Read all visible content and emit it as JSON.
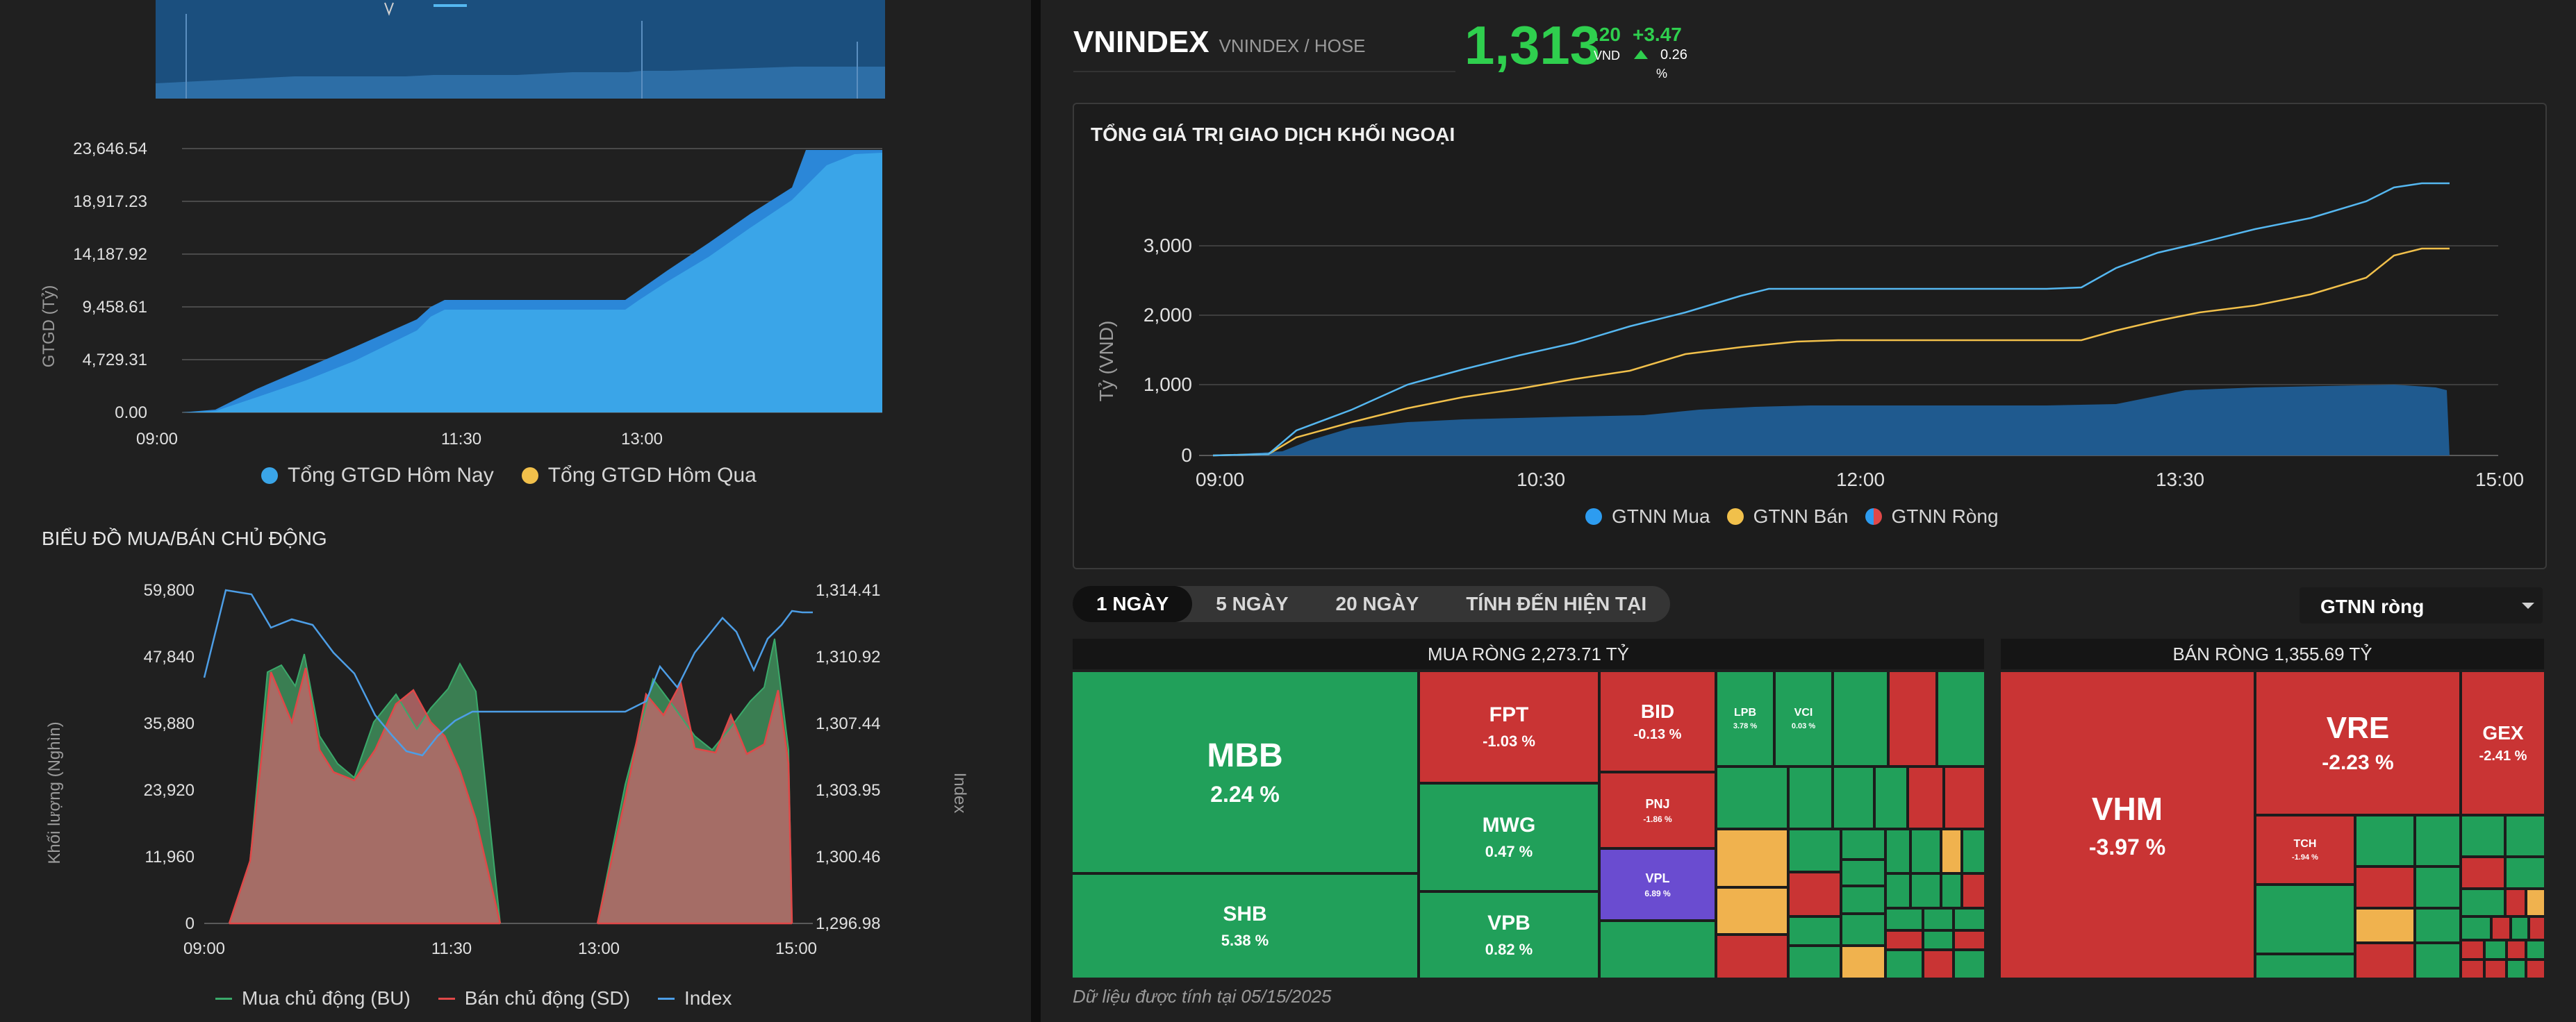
{
  "left": {
    "gtgd_chart": {
      "ylabel": "GTGD (Tỷ)",
      "y_ticks": [
        "23,646.54",
        "18,917.23",
        "14,187.92",
        "9,458.61",
        "4,729.31",
        "0.00"
      ],
      "x_ticks": [
        "09:00",
        "11:30",
        "13:00"
      ],
      "legend_today": "Tổng GTGD Hôm Nay",
      "legend_yesterday": "Tổng GTGD Hôm Qua",
      "color_today": "#3aa5e8",
      "color_yesterday": "#f1c04b"
    },
    "active_title": "BIỂU ĐỒ MUA/BÁN CHỦ ĐỘNG",
    "active_chart": {
      "ylabel_left": "Khối lượng (Nghìn)",
      "ylabel_right": "Index",
      "y_left_ticks": [
        "59,800",
        "47,840",
        "35,880",
        "23,920",
        "11,960",
        "0"
      ],
      "y_right_ticks": [
        "1,314.41",
        "1,310.92",
        "1,307.44",
        "1,303.95",
        "1,300.46",
        "1,296.98"
      ],
      "x_ticks": [
        "09:00",
        "11:30",
        "13:00",
        "15:00"
      ],
      "legend_bu": "Mua chủ động (BU)",
      "legend_sd": "Bán chủ động (SD)",
      "legend_index": "Index"
    }
  },
  "header": {
    "symbol": "VNINDEX",
    "exchange": "VNINDEX / HOSE",
    "price_main": "1,313",
    "price_decimal": ".20",
    "currency": "VND",
    "change": "+3.47",
    "change_pct": "0.26",
    "pct_sign": "%"
  },
  "foreign_chart": {
    "title": "TỔNG GIÁ TRỊ GIAO DỊCH KHỐI NGOẠI",
    "ylabel": "Tỷ (VND)",
    "y_ticks": [
      "3,000",
      "2,000",
      "1,000",
      "0"
    ],
    "x_ticks": [
      "09:00",
      "10:30",
      "12:00",
      "13:30",
      "15:00"
    ],
    "legend_buy": "GTNN Mua",
    "legend_sell": "GTNN Bán",
    "legend_net": "GTNN Ròng",
    "color_buy": "#55b7f0",
    "color_sell": "#f1c04b",
    "color_net": "#1f5a8f"
  },
  "tabs": [
    "1 NGÀY",
    "5 NGÀY",
    "20 NGÀY",
    "TÍNH ĐẾN HIỆN TẠI"
  ],
  "dropdown_value": "GTNN ròng",
  "treemap": {
    "buy_title": "MUA RÒNG 2,273.71 TỶ",
    "sell_title": "BÁN RÒNG 1,355.69 TỶ",
    "buy_cells": [
      {
        "name": "MBB",
        "pct": "2.24 %"
      },
      {
        "name": "SHB",
        "pct": "5.38 %"
      },
      {
        "name": "FPT",
        "pct": "-1.03 %"
      },
      {
        "name": "MWG",
        "pct": "0.47 %"
      },
      {
        "name": "VPB",
        "pct": "0.82 %"
      },
      {
        "name": "BID",
        "pct": "-0.13 %"
      },
      {
        "name": "PNJ",
        "pct": "-1.86 %"
      },
      {
        "name": "VPL",
        "pct": "6.89 %"
      },
      {
        "name": "LPB",
        "pct": "3.78 %"
      },
      {
        "name": "VCI",
        "pct": "0.03 %"
      }
    ],
    "sell_cells": [
      {
        "name": "VHM",
        "pct": "-3.97 %"
      },
      {
        "name": "VRE",
        "pct": "-2.23 %"
      },
      {
        "name": "GEX",
        "pct": "-2.41 %"
      },
      {
        "name": "TCH",
        "pct": "-1.94 %"
      }
    ]
  },
  "footer_note": "Dữ liệu được tính tại 05/15/2025"
}
